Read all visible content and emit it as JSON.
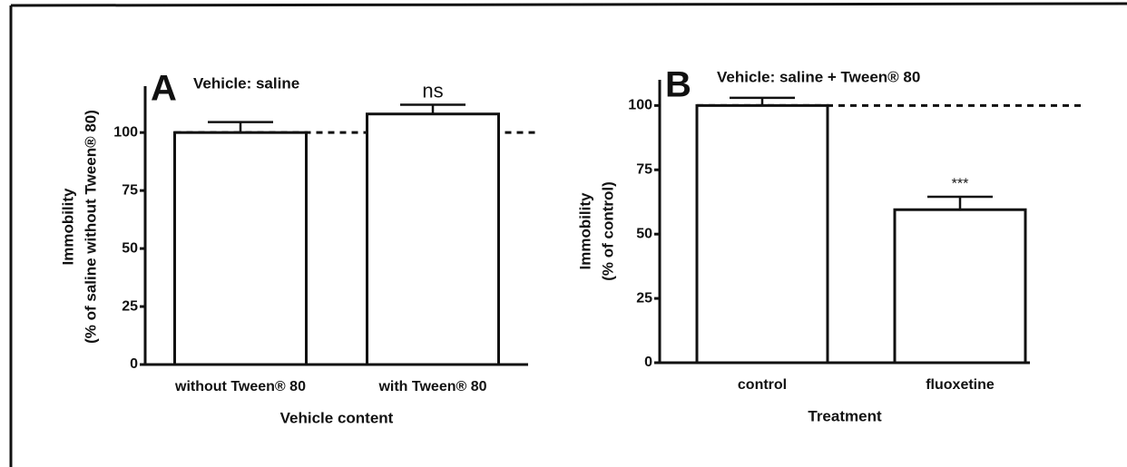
{
  "chart_data": [
    {
      "type": "bar",
      "panel_label": "A",
      "title": "Vehicle: saline",
      "ylabel": [
        "Immobility",
        "(% of saline without Tween® 80)"
      ],
      "xlabel": "Vehicle content",
      "categories": [
        "without Tween® 80",
        "with Tween® 80"
      ],
      "values": [
        100,
        108
      ],
      "errors": [
        4.5,
        4
      ],
      "value_annotations": [
        null,
        "ns"
      ],
      "color": "#ffffff",
      "reference_line": 100,
      "ylim": [
        0,
        120
      ],
      "yticks": [
        0,
        25,
        50,
        75,
        100
      ]
    },
    {
      "type": "bar",
      "panel_label": "B",
      "title": "Vehicle: saline + Tween® 80",
      "ylabel": [
        "Immobility",
        "(% of control)"
      ],
      "xlabel": "Treatment",
      "categories": [
        "control",
        "fluoxetine"
      ],
      "values": [
        100,
        59.5
      ],
      "errors": [
        3,
        5
      ],
      "value_annotations": [
        null,
        "***"
      ],
      "color": "#ffffff",
      "reference_line": 100,
      "ylim": [
        0,
        110
      ],
      "yticks": [
        0,
        25,
        50,
        75,
        100
      ]
    }
  ]
}
